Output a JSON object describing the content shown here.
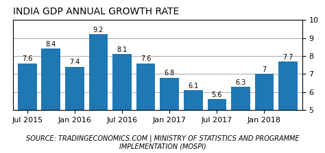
{
  "chart_data": {
    "type": "bar",
    "title": "INDIA GDP ANNUAL GROWTH RATE",
    "subtitle": "SOURCE: TRADINGECONOMICS.COM | MINISTRY OF STATISTICS AND PROGRAMME IMPLEMENTATION (MOSPI)",
    "categories": [
      "Jul 2015",
      null,
      "Jan 2016",
      null,
      "Jul 2016",
      null,
      "Jan 2017",
      null,
      "Jul 2017",
      null,
      "Jan 2018",
      null
    ],
    "values": [
      7.6,
      8.4,
      7.4,
      9.2,
      8.1,
      7.6,
      6.8,
      6.1,
      5.6,
      6.3,
      7.0,
      7.7
    ],
    "value_labels": [
      "7.6",
      "8.4",
      "7.4",
      "9.2",
      "8.1",
      "7.6",
      "6.8",
      "6.1",
      "5.6",
      "6.3",
      "7",
      "7.7"
    ],
    "data_labels": true,
    "ylim": [
      5,
      10
    ],
    "yticks": [
      5,
      6,
      7,
      8,
      9,
      10
    ],
    "grid": true
  }
}
